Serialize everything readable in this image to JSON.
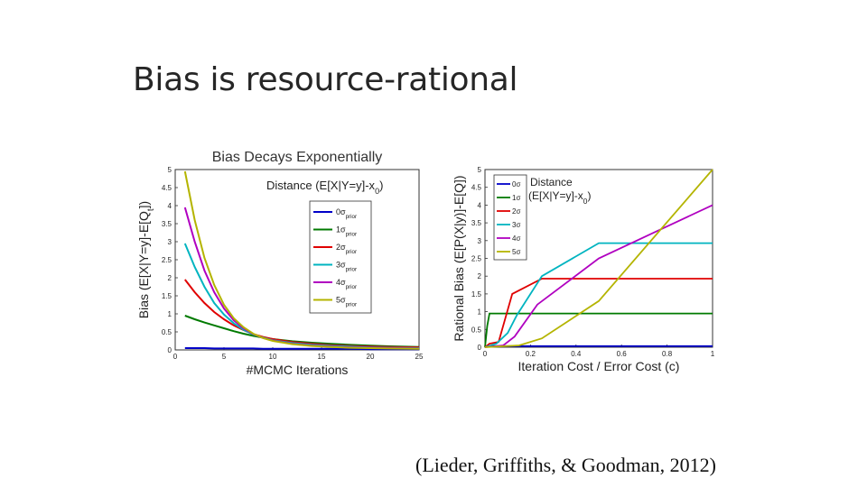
{
  "slide": {
    "title": "Bias is resource-rational",
    "citation": "(Lieder, Griffiths, & Goodman, 2012)"
  },
  "chart_data": [
    {
      "type": "line",
      "title": "Bias Decays Exponentially",
      "xlabel": "#MCMC Iterations",
      "ylabel": "Bias (E[X|Y=y]-E[Q",
      "ylabel_sub": "t",
      "ylabel_end": "])",
      "xlim": [
        0,
        25
      ],
      "ylim": [
        0,
        5
      ],
      "xticks": [
        0,
        5,
        10,
        15,
        20,
        25
      ],
      "yticks": [
        0,
        0.5,
        1,
        1.5,
        2,
        2.5,
        3,
        3.5,
        4,
        4.5,
        5
      ],
      "legend_title": "Distance (E[X|Y=y]-x",
      "legend_title_sub": "0",
      "legend_title_end": ")",
      "legend_position": "upper-right",
      "x": [
        1,
        2,
        3,
        4,
        5,
        6,
        7,
        8,
        9,
        10,
        12,
        14,
        16,
        18,
        20,
        22,
        25
      ],
      "series": [
        {
          "name": "0σ",
          "name_sub": "prior",
          "color": "#0000c8",
          "values": [
            0.05,
            0.05,
            0.05,
            0.04,
            0.04,
            0.04,
            0.04,
            0.04,
            0.03,
            0.03,
            0.03,
            0.03,
            0.03,
            0.03,
            0.02,
            0.02,
            0.02
          ]
        },
        {
          "name": "1σ",
          "name_sub": "prior",
          "color": "#007a00",
          "values": [
            0.95,
            0.85,
            0.76,
            0.68,
            0.6,
            0.52,
            0.45,
            0.39,
            0.34,
            0.3,
            0.24,
            0.2,
            0.17,
            0.14,
            0.12,
            0.1,
            0.08
          ]
        },
        {
          "name": "2σ",
          "name_sub": "prior",
          "color": "#e00000",
          "values": [
            1.95,
            1.6,
            1.3,
            1.05,
            0.85,
            0.68,
            0.55,
            0.44,
            0.36,
            0.3,
            0.22,
            0.17,
            0.13,
            0.11,
            0.09,
            0.08,
            0.07
          ]
        },
        {
          "name": "3σ",
          "name_sub": "prior",
          "color": "#00b4c0",
          "values": [
            2.95,
            2.3,
            1.75,
            1.3,
            0.98,
            0.74,
            0.56,
            0.43,
            0.34,
            0.27,
            0.19,
            0.14,
            0.11,
            0.09,
            0.07,
            0.06,
            0.05
          ]
        },
        {
          "name": "4σ",
          "name_sub": "prior",
          "color": "#b000c0",
          "values": [
            3.95,
            3.0,
            2.2,
            1.6,
            1.15,
            0.82,
            0.6,
            0.44,
            0.33,
            0.26,
            0.17,
            0.12,
            0.09,
            0.07,
            0.06,
            0.05,
            0.04
          ]
        },
        {
          "name": "5σ",
          "name_sub": "prior",
          "color": "#b4b400",
          "values": [
            4.95,
            3.6,
            2.55,
            1.8,
            1.25,
            0.88,
            0.63,
            0.45,
            0.33,
            0.25,
            0.16,
            0.11,
            0.08,
            0.06,
            0.05,
            0.04,
            0.03
          ]
        }
      ]
    },
    {
      "type": "line",
      "title": "",
      "xlabel": "Iteration Cost / Error Cost (c)",
      "ylabel": "Rational Bias (E[P(X|y)]-E[Q])",
      "xlim": [
        0,
        1
      ],
      "ylim": [
        0,
        5
      ],
      "xticks": [
        0,
        0.2,
        0.4,
        0.6,
        0.8,
        1
      ],
      "yticks": [
        0,
        0.5,
        1,
        1.5,
        2,
        2.5,
        3,
        3.5,
        4,
        4.5,
        5
      ],
      "legend_title": "Distance",
      "legend_title_line2": "(E[X|Y=y]-x",
      "legend_title_sub": "0",
      "legend_title_end": ")",
      "legend_position": "upper-left",
      "series": [
        {
          "name": "0σ",
          "color": "#0000c8",
          "points": [
            [
              0,
              0.0
            ],
            [
              0.02,
              0.03
            ],
            [
              1,
              0.03
            ]
          ]
        },
        {
          "name": "1σ",
          "color": "#007a00",
          "points": [
            [
              0,
              0.0
            ],
            [
              0.01,
              0.6
            ],
            [
              0.02,
              0.95
            ],
            [
              1,
              0.95
            ]
          ]
        },
        {
          "name": "2σ",
          "color": "#e00000",
          "points": [
            [
              0,
              0.0
            ],
            [
              0.02,
              0.1
            ],
            [
              0.06,
              0.15
            ],
            [
              0.12,
              1.5
            ],
            [
              0.25,
              1.93
            ],
            [
              1,
              1.93
            ]
          ]
        },
        {
          "name": "3σ",
          "color": "#00b4c0",
          "points": [
            [
              0,
              0.0
            ],
            [
              0.05,
              0.1
            ],
            [
              0.1,
              0.4
            ],
            [
              0.14,
              0.9
            ],
            [
              0.25,
              2.0
            ],
            [
              0.5,
              2.93
            ],
            [
              1,
              2.93
            ]
          ]
        },
        {
          "name": "4σ",
          "color": "#b000c0",
          "points": [
            [
              0,
              0.0
            ],
            [
              0.08,
              0.05
            ],
            [
              0.13,
              0.3
            ],
            [
              0.23,
              1.2
            ],
            [
              0.5,
              2.5
            ],
            [
              1,
              4.0
            ]
          ]
        },
        {
          "name": "5σ",
          "color": "#b4b400",
          "points": [
            [
              0,
              0.0
            ],
            [
              0.15,
              0.05
            ],
            [
              0.25,
              0.25
            ],
            [
              0.5,
              1.3
            ],
            [
              1,
              5.0
            ]
          ]
        }
      ]
    }
  ]
}
